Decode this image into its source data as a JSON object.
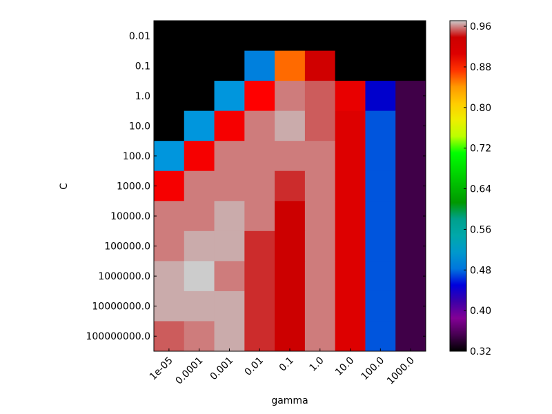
{
  "chart_data": {
    "type": "heatmap",
    "title": "",
    "xlabel": "gamma",
    "ylabel": "C",
    "x_categories": [
      "1e-05",
      "0.0001",
      "0.001",
      "0.01",
      "0.1",
      "1.0",
      "10.0",
      "100.0",
      "1000.0"
    ],
    "y_categories": [
      "0.01",
      "0.1",
      "1.0",
      "10.0",
      "100.0",
      "1000.0",
      "10000.0",
      "100000.0",
      "1000000.0",
      "10000000.0",
      "100000000.0"
    ],
    "values": [
      [
        0.33,
        0.33,
        0.33,
        0.33,
        0.33,
        0.33,
        0.33,
        0.33,
        0.33
      ],
      [
        0.33,
        0.33,
        0.33,
        0.5,
        0.85,
        0.92,
        0.33,
        0.33,
        0.33
      ],
      [
        0.33,
        0.33,
        0.51,
        0.88,
        0.96,
        0.95,
        0.9,
        0.43,
        0.35
      ],
      [
        0.33,
        0.51,
        0.89,
        0.96,
        0.97,
        0.95,
        0.91,
        0.46,
        0.35
      ],
      [
        0.51,
        0.89,
        0.96,
        0.96,
        0.96,
        0.96,
        0.91,
        0.46,
        0.35
      ],
      [
        0.89,
        0.96,
        0.96,
        0.96,
        0.94,
        0.96,
        0.91,
        0.46,
        0.35
      ],
      [
        0.96,
        0.96,
        0.97,
        0.96,
        0.93,
        0.96,
        0.91,
        0.46,
        0.35
      ],
      [
        0.96,
        0.97,
        0.97,
        0.94,
        0.93,
        0.96,
        0.91,
        0.46,
        0.35
      ],
      [
        0.97,
        0.975,
        0.96,
        0.94,
        0.93,
        0.96,
        0.91,
        0.46,
        0.35
      ],
      [
        0.97,
        0.97,
        0.97,
        0.94,
        0.93,
        0.96,
        0.91,
        0.46,
        0.35
      ],
      [
        0.95,
        0.96,
        0.97,
        0.94,
        0.93,
        0.96,
        0.91,
        0.46,
        0.35
      ]
    ],
    "colors": [
      [
        "#000000",
        "#000000",
        "#000000",
        "#000000",
        "#000000",
        "#000000",
        "#000000",
        "#000000",
        "#000000"
      ],
      [
        "#000000",
        "#000000",
        "#000000",
        "#0080dd",
        "#ff6a00",
        "#d00000",
        "#000000",
        "#000000",
        "#000000"
      ],
      [
        "#000000",
        "#000000",
        "#0096dd",
        "#ff0000",
        "#ce7c7c",
        "#cc5c5c",
        "#e80000",
        "#0000cc",
        "#400048"
      ],
      [
        "#000000",
        "#0096dd",
        "#f60000",
        "#ce7c7c",
        "#caabab",
        "#cc5c5c",
        "#dd0000",
        "#0055dd",
        "#400048"
      ],
      [
        "#0096dd",
        "#f60000",
        "#ce7c7c",
        "#ce7c7c",
        "#ce7c7c",
        "#ce7c7c",
        "#dd0000",
        "#0055dd",
        "#400048"
      ],
      [
        "#f60000",
        "#ce7c7c",
        "#ce7c7c",
        "#ce7c7c",
        "#cc2c2c",
        "#ce7c7c",
        "#dd0000",
        "#0055dd",
        "#400048"
      ],
      [
        "#ce7c7c",
        "#ce7c7c",
        "#caabab",
        "#ce7c7c",
        "#cc0000",
        "#ce7c7c",
        "#dd0000",
        "#0055dd",
        "#400048"
      ],
      [
        "#ce7c7c",
        "#caabab",
        "#caabab",
        "#cc2c2c",
        "#cc0000",
        "#ce7c7c",
        "#dd0000",
        "#0055dd",
        "#400048"
      ],
      [
        "#caabab",
        "#cccccc",
        "#ce7c7c",
        "#cc2c2c",
        "#cc0000",
        "#ce7c7c",
        "#dd0000",
        "#0055dd",
        "#400048"
      ],
      [
        "#caabab",
        "#caabab",
        "#caabab",
        "#cc2c2c",
        "#cc0000",
        "#ce7c7c",
        "#dd0000",
        "#0055dd",
        "#400048"
      ],
      [
        "#cc5c5c",
        "#ce7c7c",
        "#caabab",
        "#cc2c2c",
        "#cc0000",
        "#ce7c7c",
        "#dd0000",
        "#0055dd",
        "#400048"
      ]
    ],
    "colorbar": {
      "colormap": "nipy_spectral",
      "vmin": 0.32,
      "vmax": 0.971,
      "ticks": [
        "0.32",
        "0.40",
        "0.48",
        "0.56",
        "0.64",
        "0.72",
        "0.80",
        "0.88",
        "0.96"
      ]
    },
    "grid": false
  }
}
